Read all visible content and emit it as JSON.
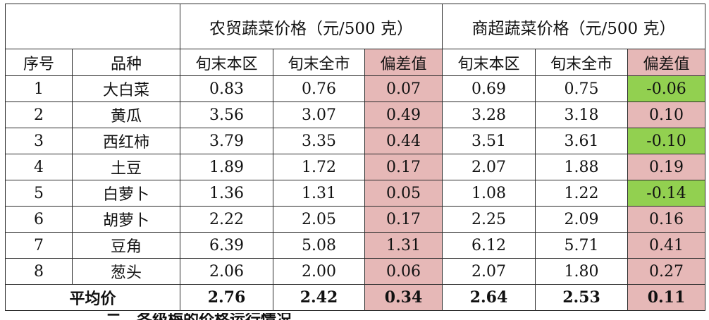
{
  "table": {
    "group_headers": {
      "farm": "农贸蔬菜价格（元/500 克）",
      "super": "商超蔬菜价格（元/500 克）"
    },
    "columns": [
      "序号",
      "品种",
      "旬末本区",
      "旬末全市",
      "偏差值",
      "旬末本区",
      "旬末全市",
      "偏差值"
    ],
    "rows": [
      {
        "no": "1",
        "name": "大白菜",
        "farm_local": "0.83",
        "farm_city": "0.76",
        "farm_diff": "0.07",
        "farm_sign": "pos",
        "super_local": "0.69",
        "super_city": "0.75",
        "super_diff": "-0.06",
        "super_sign": "neg"
      },
      {
        "no": "2",
        "name": "黄瓜",
        "farm_local": "3.56",
        "farm_city": "3.07",
        "farm_diff": "0.49",
        "farm_sign": "pos",
        "super_local": "3.28",
        "super_city": "3.18",
        "super_diff": "0.10",
        "super_sign": "pos"
      },
      {
        "no": "3",
        "name": "西红柿",
        "farm_local": "3.79",
        "farm_city": "3.35",
        "farm_diff": "0.44",
        "farm_sign": "pos",
        "super_local": "3.51",
        "super_city": "3.61",
        "super_diff": "-0.10",
        "super_sign": "neg"
      },
      {
        "no": "4",
        "name": "土豆",
        "farm_local": "1.89",
        "farm_city": "1.72",
        "farm_diff": "0.17",
        "farm_sign": "pos",
        "super_local": "2.07",
        "super_city": "1.88",
        "super_diff": "0.19",
        "super_sign": "pos"
      },
      {
        "no": "5",
        "name": "白萝卜",
        "farm_local": "1.36",
        "farm_city": "1.31",
        "farm_diff": "0.05",
        "farm_sign": "pos",
        "super_local": "1.08",
        "super_city": "1.22",
        "super_diff": "-0.14",
        "super_sign": "neg"
      },
      {
        "no": "6",
        "name": "胡萝卜",
        "farm_local": "2.22",
        "farm_city": "2.05",
        "farm_diff": "0.17",
        "farm_sign": "pos",
        "super_local": "2.25",
        "super_city": "2.09",
        "super_diff": "0.16",
        "super_sign": "pos"
      },
      {
        "no": "7",
        "name": "豆角",
        "farm_local": "6.39",
        "farm_city": "5.08",
        "farm_diff": "1.31",
        "farm_sign": "pos",
        "super_local": "6.12",
        "super_city": "5.71",
        "super_diff": "0.41",
        "super_sign": "pos"
      },
      {
        "no": "8",
        "name": "葱头",
        "farm_local": "2.06",
        "farm_city": "2.00",
        "farm_diff": "0.06",
        "farm_sign": "pos",
        "super_local": "2.07",
        "super_city": "1.80",
        "super_diff": "0.27",
        "super_sign": "pos"
      }
    ],
    "average": {
      "label": "平均价",
      "farm_local": "2.76",
      "farm_city": "2.42",
      "farm_diff": "0.34",
      "super_local": "2.64",
      "super_city": "2.53",
      "super_diff": "0.11"
    }
  },
  "colors": {
    "positive_fill": "#e6b8b7",
    "negative_fill": "#92d050"
  },
  "cutoff_text": "二、各级梅的价格运行情况"
}
